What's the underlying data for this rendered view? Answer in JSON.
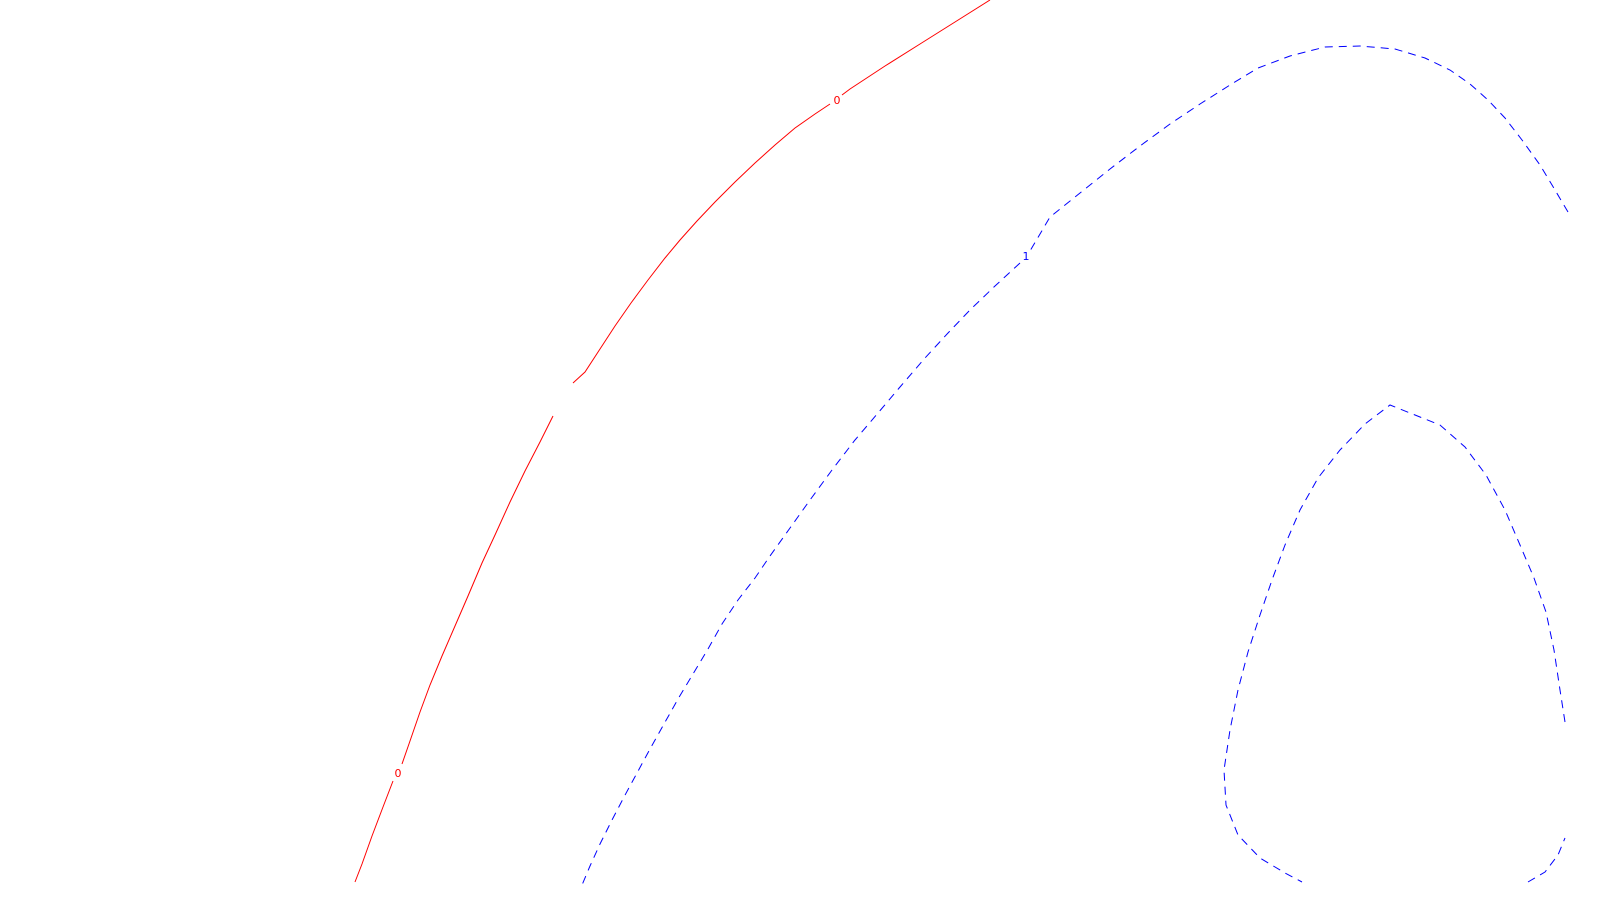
{
  "chart_data": {
    "type": "contour",
    "title": "",
    "xlabel": "",
    "ylabel": "",
    "grid": false,
    "legend": "none",
    "levels": [
      {
        "name": "0",
        "label": "0",
        "color": "#ff0000",
        "style": "solid",
        "label_count": 2
      },
      {
        "name": "1",
        "label": "1",
        "color": "#0000ff",
        "style": "dashed",
        "label_count": 1
      }
    ]
  }
}
